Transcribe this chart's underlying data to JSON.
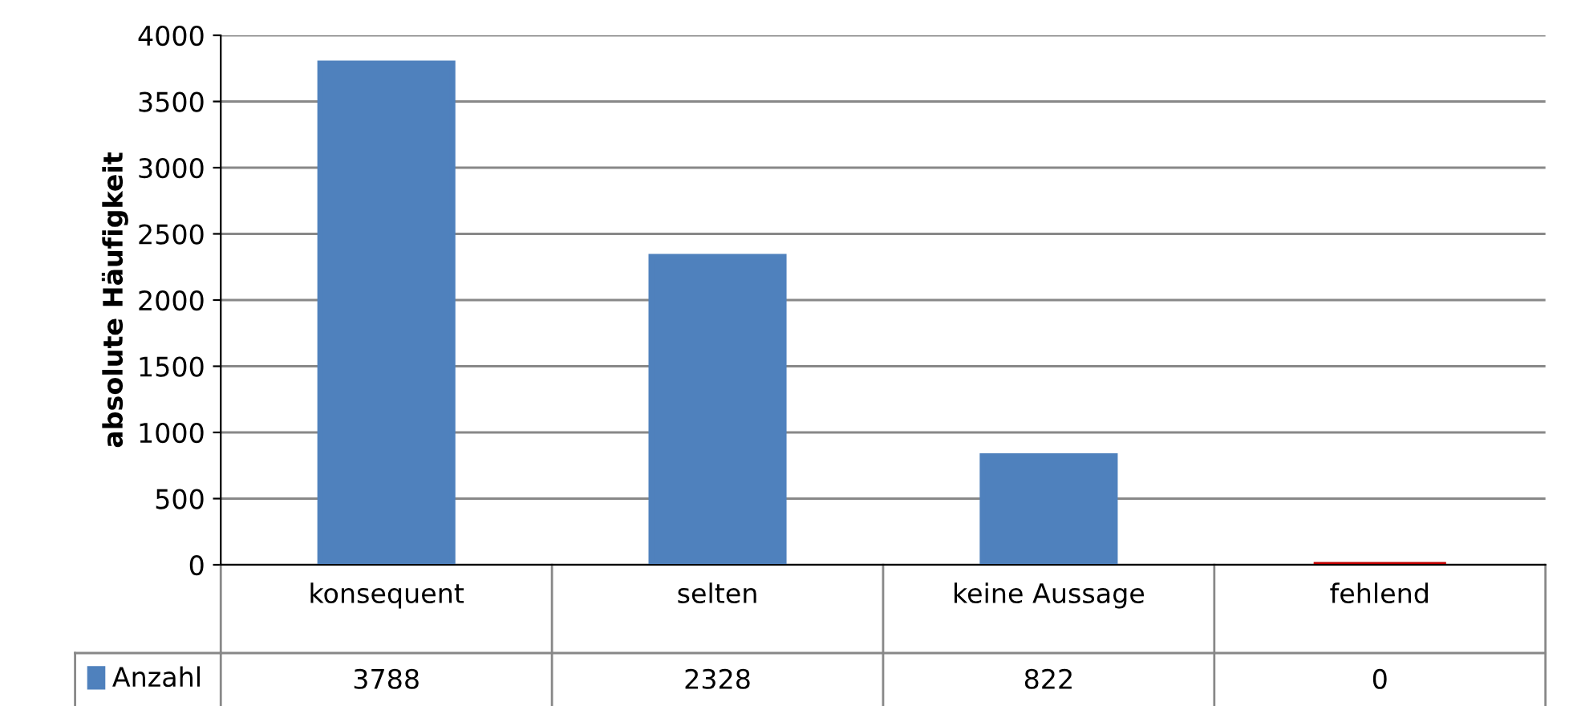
{
  "chart_data": {
    "type": "bar",
    "ylabel": "absolute Häufigkeit",
    "categories": [
      "konsequent",
      "selten",
      "keine Aussage",
      "fehlend"
    ],
    "series": [
      {
        "name": "Anzahl",
        "color": "#4f81bd",
        "colors": [
          "#4f81bd",
          "#4f81bd",
          "#4f81bd",
          "#c00000"
        ],
        "values": [
          3788,
          2328,
          822,
          0
        ]
      }
    ],
    "ylim": [
      0,
      4000
    ],
    "yticks": [
      0,
      500,
      1000,
      1500,
      2000,
      2500,
      3000,
      3500,
      4000
    ],
    "grid": "y",
    "data_labels": true,
    "legend": "bottom left"
  }
}
